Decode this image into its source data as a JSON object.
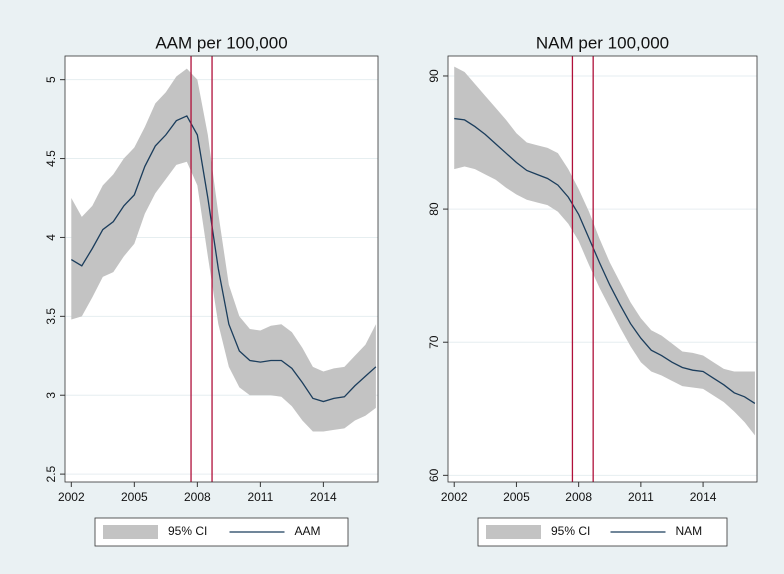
{
  "chart_data": [
    {
      "type": "line",
      "title": "AAM per 100,000",
      "x": [
        2002,
        2002.5,
        2003,
        2003.5,
        2004,
        2004.5,
        2005,
        2005.5,
        2006,
        2006.5,
        2007,
        2007.5,
        2008,
        2008.5,
        2009,
        2009.5,
        2010,
        2010.5,
        2011,
        2011.5,
        2012,
        2012.5,
        2013,
        2013.5,
        2014,
        2014.5,
        2015,
        2015.5,
        2016,
        2016.5
      ],
      "series": [
        {
          "name": "95% CI",
          "color": "#c3c3c3",
          "upper": [
            4.25,
            4.13,
            4.2,
            4.33,
            4.4,
            4.5,
            4.57,
            4.7,
            4.85,
            4.92,
            5.02,
            5.07,
            5.0,
            4.65,
            4.15,
            3.7,
            3.5,
            3.42,
            3.41,
            3.44,
            3.45,
            3.4,
            3.3,
            3.18,
            3.15,
            3.17,
            3.18,
            3.25,
            3.32,
            3.45
          ],
          "lower": [
            3.48,
            3.5,
            3.62,
            3.75,
            3.78,
            3.88,
            3.96,
            4.15,
            4.28,
            4.37,
            4.46,
            4.48,
            4.33,
            3.88,
            3.45,
            3.18,
            3.05,
            3.0,
            3.0,
            3.0,
            2.99,
            2.93,
            2.84,
            2.77,
            2.77,
            2.78,
            2.79,
            2.84,
            2.87,
            2.92
          ]
        },
        {
          "name": "AAM",
          "color": "#1b3d5c",
          "values": [
            3.86,
            3.82,
            3.93,
            4.05,
            4.1,
            4.2,
            4.27,
            4.45,
            4.58,
            4.65,
            4.74,
            4.77,
            4.65,
            4.25,
            3.8,
            3.45,
            3.28,
            3.22,
            3.21,
            3.22,
            3.22,
            3.17,
            3.08,
            2.98,
            2.96,
            2.98,
            2.99,
            3.06,
            3.12,
            3.18
          ]
        }
      ],
      "vlines": [
        2007.7,
        2008.7
      ],
      "vline_color": "#b0103a",
      "xlim": [
        2001.7,
        2016.6
      ],
      "xticks": [
        2002,
        2005,
        2008,
        2011,
        2014
      ],
      "ylim": [
        2.45,
        5.15
      ],
      "yticks": [
        2.5,
        3,
        3.5,
        4,
        4.5,
        5
      ],
      "grid": true
    },
    {
      "type": "line",
      "title": "NAM per 100,000",
      "x": [
        2002,
        2002.5,
        2003,
        2003.5,
        2004,
        2004.5,
        2005,
        2005.5,
        2006,
        2006.5,
        2007,
        2007.5,
        2008,
        2008.5,
        2009,
        2009.5,
        2010,
        2010.5,
        2011,
        2011.5,
        2012,
        2012.5,
        2013,
        2013.5,
        2014,
        2014.5,
        2015,
        2015.5,
        2016,
        2016.5
      ],
      "series": [
        {
          "name": "95% CI",
          "color": "#c3c3c3",
          "upper": [
            90.7,
            90.3,
            89.4,
            88.5,
            87.6,
            86.7,
            85.7,
            85.0,
            84.8,
            84.6,
            84.2,
            83.0,
            81.5,
            79.8,
            77.8,
            76.0,
            74.5,
            73.0,
            71.8,
            70.9,
            70.5,
            69.9,
            69.3,
            69.2,
            69.0,
            68.5,
            68.0,
            67.8,
            67.8,
            67.8
          ],
          "lower": [
            83.0,
            83.2,
            83.0,
            82.6,
            82.2,
            81.6,
            81.1,
            80.7,
            80.5,
            80.3,
            79.8,
            78.9,
            77.6,
            75.8,
            74.1,
            72.6,
            71.1,
            69.7,
            68.5,
            67.8,
            67.5,
            67.1,
            66.7,
            66.6,
            66.5,
            66.0,
            65.5,
            64.8,
            64.0,
            63.0
          ]
        },
        {
          "name": "NAM",
          "color": "#1b3d5c",
          "values": [
            86.8,
            86.7,
            86.2,
            85.6,
            84.9,
            84.2,
            83.5,
            82.9,
            82.6,
            82.3,
            81.8,
            80.9,
            79.6,
            77.8,
            76.0,
            74.3,
            72.8,
            71.4,
            70.3,
            69.4,
            69.0,
            68.5,
            68.1,
            67.9,
            67.8,
            67.3,
            66.8,
            66.2,
            65.9,
            65.4
          ]
        }
      ],
      "vlines": [
        2007.7,
        2008.7
      ],
      "vline_color": "#b0103a",
      "xlim": [
        2001.7,
        2016.6
      ],
      "xticks": [
        2002,
        2005,
        2008,
        2011,
        2014
      ],
      "ylim": [
        59.5,
        91.5
      ],
      "yticks": [
        60,
        70,
        80,
        90
      ],
      "grid": true
    }
  ]
}
